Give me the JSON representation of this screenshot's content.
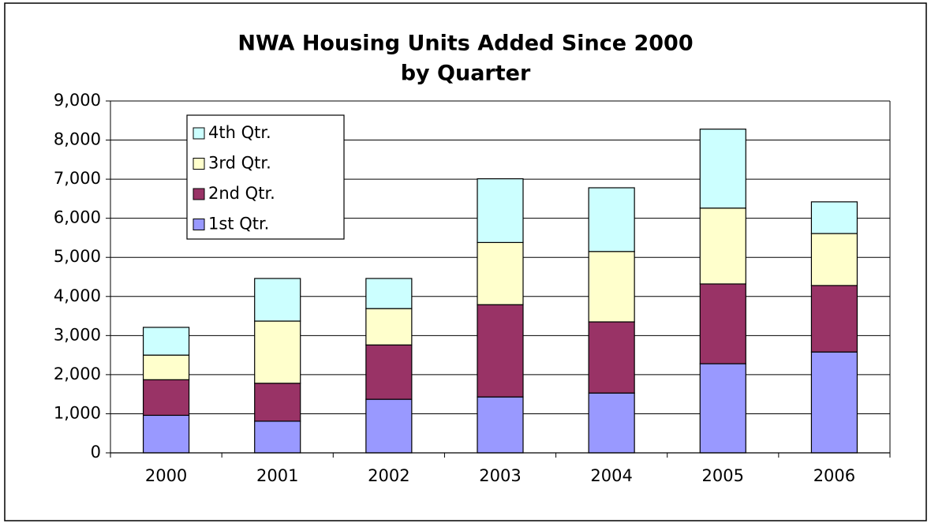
{
  "chart_data": {
    "type": "stacked_bar",
    "title": "NWA Housing Units Added Since 2000",
    "subtitle": "by Quarter",
    "categories": [
      "2000",
      "2001",
      "2002",
      "2003",
      "2004",
      "2005",
      "2006"
    ],
    "series": [
      {
        "name": "1st Qtr.",
        "color": "#9999ff",
        "values": [
          960,
          810,
          1370,
          1430,
          1530,
          2280,
          2580
        ]
      },
      {
        "name": "2nd Qtr.",
        "color": "#993366",
        "values": [
          910,
          970,
          1390,
          2360,
          1820,
          2040,
          1700
        ]
      },
      {
        "name": "3rd Qtr.",
        "color": "#ffffcc",
        "values": [
          630,
          1590,
          930,
          1590,
          1800,
          1940,
          1330
        ]
      },
      {
        "name": "4th Qtr.",
        "color": "#ccffff",
        "values": [
          710,
          1090,
          770,
          1630,
          1630,
          2020,
          810
        ]
      }
    ],
    "ylim": [
      0,
      9000
    ],
    "yticks": [
      0,
      {
        "value": 1000,
        "label": "1,000"
      },
      {
        "value": 2000,
        "label": "2,000"
      },
      {
        "value": 3000,
        "label": "3,000"
      },
      {
        "value": 4000,
        "label": "4,000"
      },
      {
        "value": 5000,
        "label": "5,000"
      },
      {
        "value": 6000,
        "label": "6,000"
      },
      {
        "value": 7000,
        "label": "7,000"
      },
      {
        "value": 8000,
        "label": "8,000"
      },
      {
        "value": 9000,
        "label": "9,000"
      }
    ],
    "grid": true,
    "legend": "upper left"
  }
}
